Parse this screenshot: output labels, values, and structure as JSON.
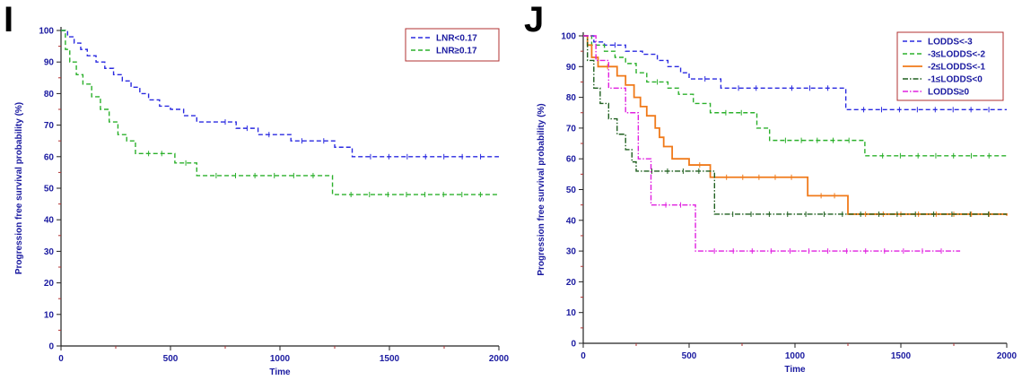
{
  "panels": [
    {
      "letter": "I"
    },
    {
      "letter": "J"
    }
  ],
  "chart_data": [
    {
      "type": "line",
      "step": true,
      "xlabel": "Time",
      "ylabel": "Progression free survival probability (%)",
      "xlim": [
        0,
        2000
      ],
      "ylim": [
        0,
        100
      ],
      "xticks": [
        0,
        500,
        1000,
        1500,
        2000
      ],
      "yticks": [
        0,
        10,
        20,
        30,
        40,
        50,
        60,
        70,
        80,
        90,
        100
      ],
      "legend_position": "top-right",
      "grid": false,
      "series": [
        {
          "name": "LNR<0.17",
          "color": "#2a2ae0",
          "dash": "dashed",
          "x": [
            0,
            30,
            60,
            90,
            120,
            160,
            200,
            240,
            280,
            320,
            360,
            400,
            450,
            500,
            560,
            620,
            700,
            800,
            900,
            1000,
            1050,
            1150,
            1250,
            1330,
            2000
          ],
          "y": [
            100,
            98,
            96,
            94,
            92,
            90,
            88,
            86,
            84,
            82,
            80,
            78,
            76,
            75,
            73,
            71,
            71,
            69,
            67,
            67,
            65,
            65,
            63,
            60,
            60
          ]
        },
        {
          "name": "LNR≥0.17",
          "color": "#2bb02b",
          "dash": "dashed",
          "x": [
            0,
            20,
            40,
            70,
            100,
            140,
            180,
            220,
            260,
            300,
            340,
            520,
            620,
            1240,
            2000
          ],
          "y": [
            100,
            94,
            90,
            86,
            83,
            79,
            75,
            71,
            67,
            65,
            61,
            58,
            54,
            48,
            48
          ]
        }
      ]
    },
    {
      "type": "line",
      "step": true,
      "xlabel": "Time",
      "ylabel": "Progression free survival probability (%)",
      "xlim": [
        0,
        2000
      ],
      "ylim": [
        0,
        100
      ],
      "xticks": [
        0,
        500,
        1000,
        1500,
        2000
      ],
      "yticks": [
        0,
        10,
        20,
        30,
        40,
        50,
        60,
        70,
        80,
        90,
        100
      ],
      "legend_position": "top-right",
      "grid": false,
      "series": [
        {
          "name": "LODDS<-3",
          "color": "#2a2ae0",
          "dash": "dashed",
          "x": [
            0,
            50,
            100,
            200,
            280,
            350,
            400,
            460,
            500,
            650,
            900,
            1240,
            2000
          ],
          "y": [
            100,
            98,
            97,
            95,
            94,
            92,
            90,
            88,
            86,
            83,
            83,
            76,
            76
          ]
        },
        {
          "name": "-3≤LODDS<-2",
          "color": "#2bb02b",
          "dash": "dashed",
          "x": [
            0,
            40,
            100,
            150,
            200,
            250,
            300,
            400,
            450,
            520,
            600,
            820,
            880,
            1330,
            2000
          ],
          "y": [
            100,
            97,
            95,
            93,
            91,
            88,
            85,
            83,
            81,
            78,
            75,
            70,
            66,
            61,
            61
          ]
        },
        {
          "name": "-2≤LODDS<-1",
          "color": "#f07a1a",
          "dash": "solid",
          "x": [
            0,
            20,
            40,
            70,
            160,
            200,
            240,
            270,
            300,
            340,
            360,
            380,
            420,
            500,
            600,
            1060,
            1250,
            2000
          ],
          "y": [
            100,
            97,
            93,
            90,
            87,
            84,
            80,
            77,
            74,
            70,
            67,
            64,
            60,
            58,
            54,
            48,
            42,
            41.5
          ]
        },
        {
          "name": "-1≤LODDS<0",
          "color": "#1f5f1f",
          "dash": "dashdot",
          "x": [
            0,
            20,
            50,
            80,
            120,
            160,
            200,
            230,
            250,
            620,
            2000
          ],
          "y": [
            100,
            92,
            83,
            78,
            73,
            68,
            63,
            59,
            56,
            42,
            42
          ]
        },
        {
          "name": "LODDS≥0",
          "color": "#e020e0",
          "dash": "dashdot",
          "x": [
            0,
            60,
            120,
            200,
            260,
            320,
            530,
            1780
          ],
          "y": [
            100,
            92,
            83,
            75,
            60,
            45,
            30,
            30
          ]
        }
      ]
    }
  ]
}
